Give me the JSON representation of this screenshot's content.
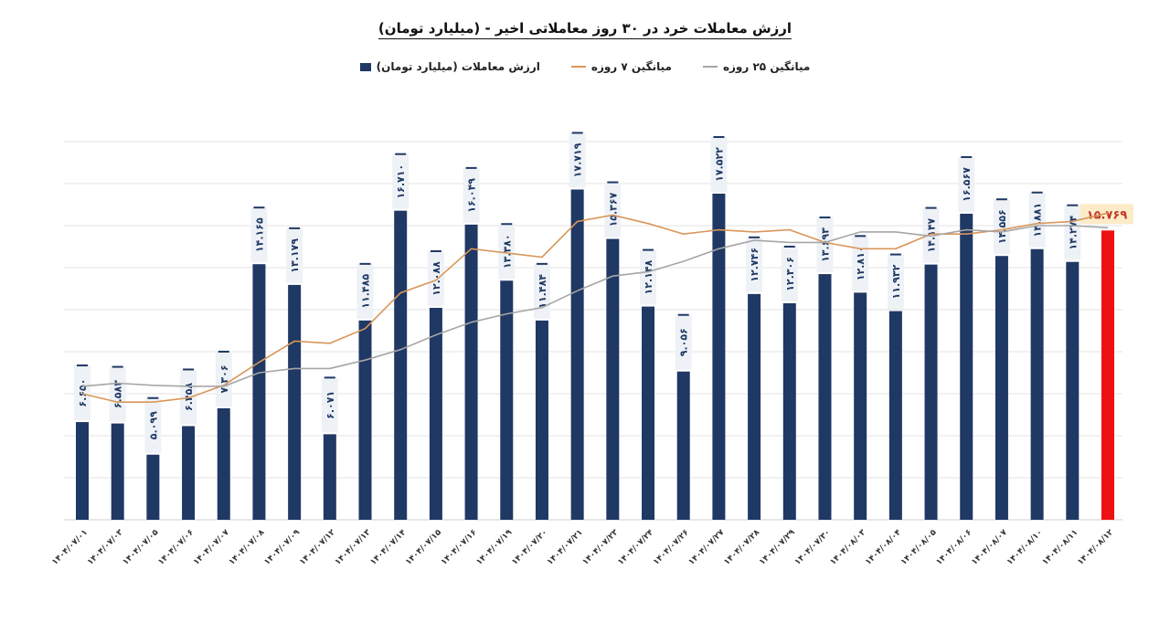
{
  "chart_data": {
    "type": "bar",
    "title": "ارزش معاملات خرد در ۳۰ روز معاملاتی اخیر - (میلیارد تومان)",
    "xlabel": "",
    "ylabel": "",
    "ylim": [
      2,
      20
    ],
    "grid": true,
    "legend_position": "top",
    "legend": [
      "ارزش معاملات (میلیارد تومان)",
      "میانگین ۷ روزه",
      "میانگین ۲۵ روزه"
    ],
    "categories": [
      "۱۴۰۴/۰۷/۰۱",
      "۱۴۰۴/۰۷/۰۳",
      "۱۴۰۴/۰۷/۰۵",
      "۱۴۰۴/۰۷/۰۶",
      "۱۴۰۴/۰۷/۰۷",
      "۱۴۰۴/۰۷/۰۸",
      "۱۴۰۴/۰۷/۰۹",
      "۱۴۰۴/۰۷/۱۲",
      "۱۴۰۴/۰۷/۱۳",
      "۱۴۰۴/۰۷/۱۴",
      "۱۴۰۴/۰۷/۱۵",
      "۱۴۰۴/۰۷/۱۶",
      "۱۴۰۴/۰۷/۱۹",
      "۱۴۰۴/۰۷/۲۰",
      "۱۴۰۴/۰۷/۲۱",
      "۱۴۰۴/۰۷/۲۳",
      "۱۴۰۴/۰۷/۲۴",
      "۱۴۰۴/۰۷/۲۶",
      "۱۴۰۴/۰۷/۲۷",
      "۱۴۰۴/۰۷/۲۸",
      "۱۴۰۴/۰۷/۲۹",
      "۱۴۰۴/۰۷/۳۰",
      "۱۴۰۴/۰۸/۰۳",
      "۱۴۰۴/۰۸/۰۴",
      "۱۴۰۴/۰۸/۰۵",
      "۱۴۰۴/۰۸/۰۶",
      "۱۴۰۴/۰۸/۰۷",
      "۱۴۰۴/۰۸/۱۰",
      "۱۴۰۴/۰۸/۱۱",
      "۱۴۰۴/۰۸/۱۲"
    ],
    "series": [
      {
        "name": "ارزش معاملات (میلیارد تومان)",
        "kind": "bar",
        "color": "#1f3864",
        "highlight_color": "#ee1111",
        "values": [
          6.65,
          6.583,
          5.099,
          6.458,
          7.306,
          14.165,
          13.179,
          6.071,
          11.485,
          16.71,
          12.088,
          16.049,
          13.38,
          11.484,
          17.719,
          15.367,
          12.148,
          9.056,
          17.522,
          12.746,
          12.306,
          13.693,
          12.81,
          11.932,
          14.147,
          16.567,
          14.556,
          14.881,
          14.274,
          15.769
        ],
        "labels": [
          "۶.۶۵۰",
          "۶.۵۸۳",
          "۵.۰۹۹",
          "۶.۴۵۸",
          "۷.۳۰۶",
          "۱۴.۱۶۵",
          "۱۳.۱۷۹",
          "۶.۰۷۱",
          "۱۱.۴۸۵",
          "۱۶.۷۱۰",
          "۱۲.۰۸۸",
          "۱۶.۰۴۹",
          "۱۳.۳۸۰",
          "۱۱.۴۸۴",
          "۱۷.۷۱۹",
          "۱۵.۳۶۷",
          "۱۲.۱۴۸",
          "۹.۰۵۶",
          "۱۷.۵۲۲",
          "۱۲.۷۴۶",
          "۱۲.۳۰۶",
          "۱۳.۶۹۳",
          "۱۲.۸۱۰",
          "۱۱.۹۳۲",
          "۱۴.۱۴۷",
          "۱۶.۵۶۷",
          "۱۴.۵۵۶",
          "۱۴.۸۸۱",
          "۱۴.۲۷۴",
          "۱۵.۷۶۹"
        ]
      },
      {
        "name": "میانگین ۷ روزه",
        "kind": "line",
        "color": "#d9975a",
        "values": [
          8.0,
          7.6,
          7.6,
          7.8,
          8.4,
          9.5,
          10.5,
          10.4,
          11.1,
          12.8,
          13.4,
          14.9,
          14.7,
          14.5,
          16.2,
          16.5,
          16.1,
          15.6,
          15.8,
          15.7,
          15.8,
          15.2,
          14.9,
          14.9,
          15.6,
          15.6,
          15.8,
          16.1,
          16.2,
          16.6
        ]
      },
      {
        "name": "میانگین ۲۵ روزه",
        "kind": "line",
        "color": "#a6a6a6",
        "values": [
          8.35,
          8.5,
          8.4,
          8.35,
          8.35,
          9.0,
          9.2,
          9.2,
          9.6,
          10.1,
          10.8,
          11.4,
          11.8,
          12.1,
          12.9,
          13.6,
          13.8,
          14.3,
          14.9,
          15.3,
          15.2,
          15.2,
          15.7,
          15.7,
          15.5,
          15.8,
          15.7,
          16.0,
          16.0,
          15.9
        ]
      }
    ]
  }
}
